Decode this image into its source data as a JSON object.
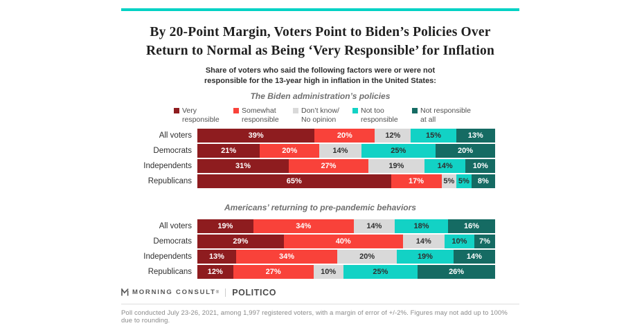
{
  "accent_color": "#00d2c4",
  "header": {
    "title_line1": "By 20-Point Margin, Voters Point to Biden’s Policies Over",
    "title_line2": "Return to Normal as Being ‘Very Responsible’ for Inflation",
    "subtitle_line1": "Share of voters who said the following factors were or were not",
    "subtitle_line2": "responsible for the 13-year high in inflation in the United States:"
  },
  "legend": {
    "items": [
      {
        "line1": "Very",
        "line2": "responsible",
        "color": "#8e1c1f"
      },
      {
        "line1": "Somewhat",
        "line2": "responsible",
        "color": "#f9423a"
      },
      {
        "line1": "Don’t know/",
        "line2": "No opinion",
        "color": "#d9d9d9"
      },
      {
        "line1": "Not too",
        "line2": "responsible",
        "color": "#12d2c5"
      },
      {
        "line1": "Not responsible",
        "line2": "at all",
        "color": "#156b63"
      }
    ]
  },
  "chart_data": [
    {
      "type": "bar",
      "stacked": true,
      "orientation": "horizontal",
      "title": "The Biden administration’s policies",
      "categories": [
        "All voters",
        "Democrats",
        "Independents",
        "Republicans"
      ],
      "value_suffix": "%",
      "xlim": [
        0,
        100
      ],
      "series": [
        {
          "name": "Very responsible",
          "color": "#8e1c1f",
          "label_color": "#ffffff",
          "values": [
            39,
            21,
            31,
            65
          ]
        },
        {
          "name": "Somewhat responsible",
          "color": "#f9423a",
          "label_color": "#ffffff",
          "values": [
            20,
            20,
            27,
            17
          ]
        },
        {
          "name": "Don’t know/No opinion",
          "color": "#d9d9d9",
          "label_color": "#2f2f2f",
          "values": [
            12,
            14,
            19,
            5
          ]
        },
        {
          "name": "Not too responsible",
          "color": "#12d2c5",
          "label_color": "#2f2f2f",
          "values": [
            15,
            25,
            14,
            5
          ]
        },
        {
          "name": "Not responsible at all",
          "color": "#156b63",
          "label_color": "#ffffff",
          "values": [
            13,
            20,
            10,
            8
          ]
        }
      ]
    },
    {
      "type": "bar",
      "stacked": true,
      "orientation": "horizontal",
      "title": "Americans’ returning to pre-pandemic behaviors",
      "categories": [
        "All voters",
        "Democrats",
        "Independents",
        "Republicans"
      ],
      "value_suffix": "%",
      "xlim": [
        0,
        100
      ],
      "series": [
        {
          "name": "Very responsible",
          "color": "#8e1c1f",
          "label_color": "#ffffff",
          "values": [
            19,
            29,
            13,
            12
          ]
        },
        {
          "name": "Somewhat responsible",
          "color": "#f9423a",
          "label_color": "#ffffff",
          "values": [
            34,
            40,
            34,
            27
          ]
        },
        {
          "name": "Don’t know/No opinion",
          "color": "#d9d9d9",
          "label_color": "#2f2f2f",
          "values": [
            14,
            14,
            20,
            10
          ]
        },
        {
          "name": "Not too responsible",
          "color": "#12d2c5",
          "label_color": "#2f2f2f",
          "values": [
            18,
            10,
            19,
            25
          ]
        },
        {
          "name": "Not responsible at all",
          "color": "#156b63",
          "label_color": "#ffffff",
          "values": [
            16,
            7,
            14,
            26
          ]
        }
      ]
    }
  ],
  "footer": {
    "brand1": "MORNING CONSULT",
    "brand1_mark": "®",
    "brand2": "POLITICO",
    "footnote": "Poll conducted July 23-26, 2021, among 1,997 registered voters, with a margin of error of +/-2%. Figures may not add up to 100% due to rounding."
  }
}
